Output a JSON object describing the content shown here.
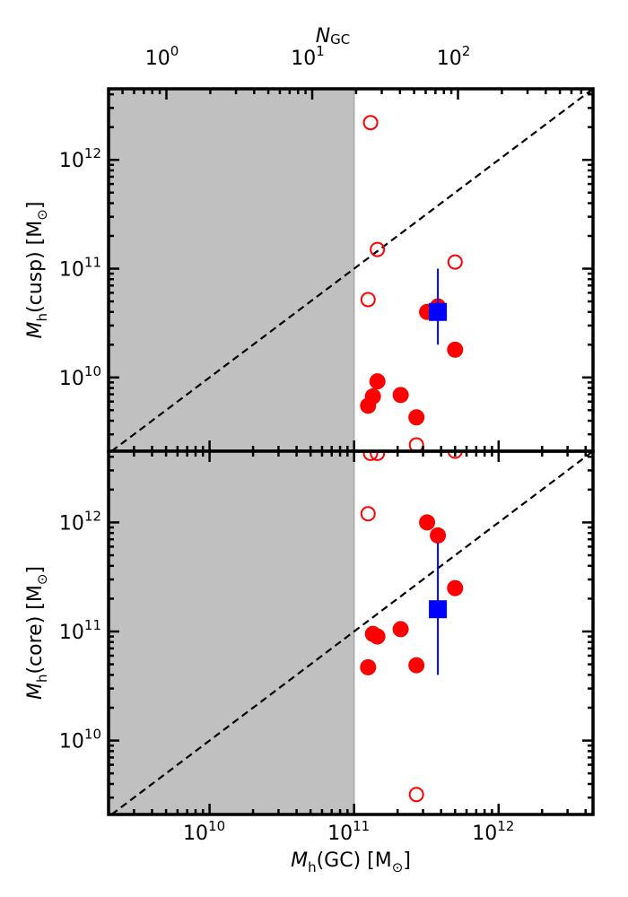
{
  "chart_data": [
    {
      "panel": "top",
      "type": "scatter",
      "xscale": "log",
      "yscale": "log",
      "xlim": [
        2000000000.0,
        4500000000000.0
      ],
      "ylim": [
        2100000000.0,
        4500000000000.0
      ],
      "ylabel": {
        "main": "M",
        "sub": "h",
        "tail": "(cusp) [M",
        "sun": "⊙",
        "end": "]"
      },
      "top_axis": {
        "label": {
          "main": "N",
          "sub": "GC"
        },
        "ticks": [
          {
            "value": 1,
            "base": "10",
            "exp": "0"
          },
          {
            "value": 10,
            "base": "10",
            "exp": "1"
          },
          {
            "value": 100,
            "base": "10",
            "exp": "2"
          }
        ]
      },
      "yticks": [
        {
          "value": 10000000000.0,
          "base": "10",
          "exp": "10"
        },
        {
          "value": 100000000000.0,
          "base": "10",
          "exp": "11"
        },
        {
          "value": 1000000000000.0,
          "base": "10",
          "exp": "12"
        }
      ],
      "shaded_region": {
        "x_max": 100000000000.0,
        "color": "#c0c0c0"
      },
      "reference_line": "one-to-one dashed",
      "series": [
        {
          "marker": "filled-circle",
          "color": "#ff0000",
          "points": [
            {
              "x": 125000000000.0,
              "y": 5500000000.0
            },
            {
              "x": 135000000000.0,
              "y": 6700000000.0
            },
            {
              "x": 145000000000.0,
              "y": 9200000000.0
            },
            {
              "x": 210000000000.0,
              "y": 6900000000.0
            },
            {
              "x": 270000000000.0,
              "y": 4300000000.0
            },
            {
              "x": 320000000000.0,
              "y": 40000000000.0
            },
            {
              "x": 380000000000.0,
              "y": 45000000000.0
            },
            {
              "x": 500000000000.0,
              "y": 18000000000.0
            }
          ]
        },
        {
          "marker": "open-circle",
          "color": "#ff0000",
          "points": [
            {
              "x": 130000000000.0,
              "y": 2200000000000.0
            },
            {
              "x": 145000000000.0,
              "y": 150000000000.0
            },
            {
              "x": 125000000000.0,
              "y": 52000000000.0
            },
            {
              "x": 500000000000.0,
              "y": 115000000000.0
            },
            {
              "x": 270000000000.0,
              "y": 2400000000.0
            }
          ]
        },
        {
          "marker": "filled-square",
          "color": "#0000ff",
          "points": [
            {
              "x": 380000000000.0,
              "y": 40000000000.0,
              "y_low": 20000000000.0,
              "y_high": 100000000000.0
            }
          ]
        }
      ]
    },
    {
      "panel": "bottom",
      "type": "scatter",
      "xscale": "log",
      "yscale": "log",
      "xlim": [
        2000000000.0,
        4500000000000.0
      ],
      "ylim": [
        2100000000.0,
        4500000000000.0
      ],
      "ylabel": {
        "main": "M",
        "sub": "h",
        "tail": "(core) [M",
        "sun": "⊙",
        "end": "]"
      },
      "xlabel": {
        "main": "M",
        "sub": "h",
        "tail": "(GC) [M",
        "sun": "⊙",
        "end": "]"
      },
      "xticks": [
        {
          "value": 10000000000.0,
          "base": "10",
          "exp": "10"
        },
        {
          "value": 100000000000.0,
          "base": "10",
          "exp": "11"
        },
        {
          "value": 1000000000000.0,
          "base": "10",
          "exp": "12"
        }
      ],
      "yticks": [
        {
          "value": 10000000000.0,
          "base": "10",
          "exp": "10"
        },
        {
          "value": 100000000000.0,
          "base": "10",
          "exp": "11"
        },
        {
          "value": 1000000000000.0,
          "base": "10",
          "exp": "12"
        }
      ],
      "shaded_region": {
        "x_max": 100000000000.0,
        "color": "#c0c0c0"
      },
      "reference_line": "one-to-one dashed",
      "series": [
        {
          "marker": "filled-circle",
          "color": "#ff0000",
          "points": [
            {
              "x": 125000000000.0,
              "y": 47000000000.0
            },
            {
              "x": 135000000000.0,
              "y": 95000000000.0
            },
            {
              "x": 145000000000.0,
              "y": 90000000000.0
            },
            {
              "x": 210000000000.0,
              "y": 105000000000.0
            },
            {
              "x": 270000000000.0,
              "y": 49000000000.0
            },
            {
              "x": 320000000000.0,
              "y": 1000000000000.0
            },
            {
              "x": 380000000000.0,
              "y": 760000000000.0
            },
            {
              "x": 500000000000.0,
              "y": 250000000000.0
            }
          ]
        },
        {
          "marker": "open-circle",
          "color": "#ff0000",
          "points": [
            {
              "x": 130000000000.0,
              "y": 4300000000000.0
            },
            {
              "x": 145000000000.0,
              "y": 4300000000000.0
            },
            {
              "x": 125000000000.0,
              "y": 1200000000000.0
            },
            {
              "x": 500000000000.0,
              "y": 4500000000000.0
            },
            {
              "x": 270000000000.0,
              "y": 3200000000.0
            }
          ]
        },
        {
          "marker": "filled-square",
          "color": "#0000ff",
          "points": [
            {
              "x": 380000000000.0,
              "y": 160000000000.0,
              "y_low": 40000000000.0,
              "y_high": 650000000000.0
            }
          ]
        }
      ]
    }
  ]
}
